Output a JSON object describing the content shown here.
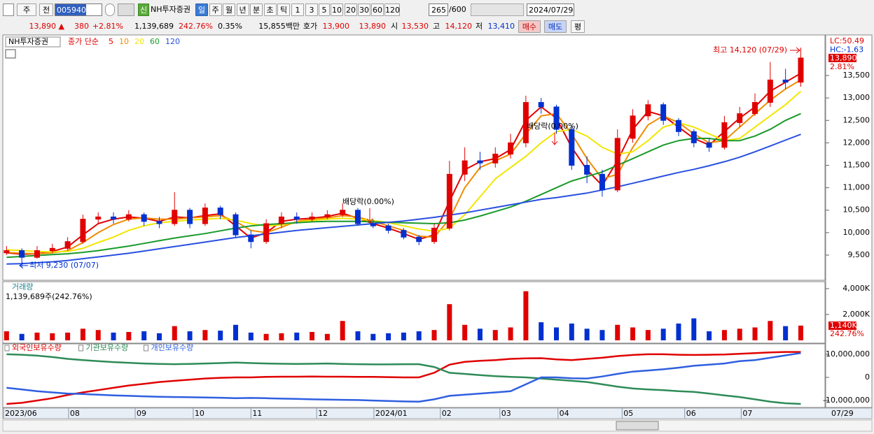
{
  "toolbar": {
    "period_unit": "주",
    "prev_label": "전",
    "code": "005940",
    "badge": "신",
    "name": "NH투자증권",
    "periods": [
      "일",
      "주",
      "월",
      "년",
      "분",
      "초",
      "틱"
    ],
    "intervals": [
      "1",
      "3",
      "5",
      "10",
      "20",
      "30",
      "60",
      "120"
    ],
    "count": "265",
    "max_count": "/600",
    "date": "2024/07/29"
  },
  "quote": {
    "price": "13,890 ▲",
    "change": "380",
    "change_pct": "+2.81%",
    "volume": "1,139,689",
    "volume_ratio": "242.76%",
    "turnover": "0.35%",
    "amount": "15,855백만",
    "ask_label": "호가",
    "ask": "13,900",
    "bid": "13,890",
    "open_label": "시",
    "open": "13,530",
    "high_label": "고",
    "high": "14,120",
    "low_label": "저",
    "low": "13,410",
    "buy": "매수",
    "sell": "매도",
    "avg": "평"
  },
  "chart_data": [
    {
      "type": "candlestick",
      "title": "NH투자증권",
      "legend_prefix": "종가 단순",
      "up_color": "#e00000",
      "down_color": "#0030d0",
      "open": [
        9550,
        9600,
        9450,
        9600,
        9650,
        9800,
        10300,
        10350,
        10300,
        10400,
        10250,
        10200,
        10500,
        10200,
        10550,
        10400,
        9950,
        9800,
        10200,
        10350,
        10300,
        10350,
        10400,
        10500,
        10200,
        10150,
        10050,
        9900,
        9800,
        10100,
        11300,
        11600,
        11550,
        11750,
        12000,
        12900,
        12800,
        12300,
        11500,
        11300,
        10950,
        12100,
        12600,
        12850,
        12500,
        12250,
        12000,
        11900,
        12450,
        12650,
        12900,
        13400,
        13350
      ],
      "high": [
        9700,
        9650,
        9700,
        9750,
        9900,
        10400,
        10450,
        10450,
        10500,
        10450,
        10350,
        10900,
        10550,
        10650,
        10600,
        10450,
        10050,
        10300,
        10450,
        10450,
        10450,
        10500,
        10650,
        10550,
        10300,
        10200,
        10100,
        9950,
        10200,
        11600,
        11900,
        11800,
        11900,
        12200,
        13050,
        13000,
        12850,
        12400,
        11700,
        11400,
        12300,
        12750,
        12950,
        12900,
        12550,
        12300,
        12100,
        12600,
        12800,
        13100,
        13800,
        13650,
        14120
      ],
      "low": [
        9500,
        9230,
        9420,
        9550,
        9600,
        9750,
        10200,
        10200,
        10250,
        10150,
        10100,
        10150,
        10100,
        10150,
        10300,
        9900,
        9650,
        9750,
        10100,
        10200,
        10250,
        10300,
        10350,
        10150,
        10100,
        9980,
        9850,
        9720,
        9750,
        10050,
        11150,
        11400,
        11450,
        11650,
        11900,
        12650,
        12200,
        11400,
        11100,
        10800,
        10900,
        12000,
        12500,
        12400,
        12150,
        11900,
        11800,
        11850,
        12350,
        12600,
        12800,
        13200,
        13250
      ],
      "close": [
        9600,
        9450,
        9600,
        9650,
        9800,
        10300,
        10350,
        10300,
        10400,
        10250,
        10200,
        10500,
        10200,
        10550,
        10400,
        9950,
        9800,
        10200,
        10350,
        10300,
        10350,
        10400,
        10500,
        10200,
        10150,
        10050,
        9900,
        9800,
        10100,
        11300,
        11600,
        11550,
        11750,
        12000,
        12900,
        12800,
        12300,
        11500,
        11300,
        10950,
        12100,
        12600,
        12850,
        12500,
        12250,
        12000,
        11900,
        12450,
        12650,
        12900,
        13400,
        13350,
        13890
      ],
      "series": [
        {
          "name": "5",
          "color": "#e00000",
          "values": [
            9550,
            9520,
            9530,
            9580,
            9680,
            9950,
            10200,
            10300,
            10350,
            10320,
            10250,
            10350,
            10330,
            10380,
            10420,
            10150,
            9880,
            10000,
            10250,
            10300,
            10320,
            10360,
            10430,
            10320,
            10200,
            10100,
            9980,
            9850,
            9950,
            10700,
            11400,
            11580,
            11650,
            11850,
            12500,
            12800,
            12550,
            11900,
            11400,
            11050,
            11600,
            12300,
            12700,
            12600,
            12350,
            12100,
            11950,
            12250,
            12550,
            12800,
            13150,
            13350,
            13550
          ]
        },
        {
          "name": "10",
          "color": "#f08c00",
          "values": [
            9560,
            9540,
            9530,
            9550,
            9600,
            9780,
            10000,
            10180,
            10300,
            10330,
            10300,
            10300,
            10330,
            10350,
            10380,
            10250,
            10050,
            10000,
            10120,
            10250,
            10300,
            10330,
            10380,
            10350,
            10250,
            10150,
            10050,
            9920,
            9900,
            10300,
            11000,
            11450,
            11600,
            11750,
            12200,
            12600,
            12650,
            12200,
            11650,
            11200,
            11300,
            11900,
            12400,
            12600,
            12450,
            12200,
            12000,
            12050,
            12350,
            12650,
            12950,
            13200,
            13400
          ]
        },
        {
          "name": "20",
          "color": "#f2e600",
          "values": [
            9620,
            9600,
            9580,
            9570,
            9580,
            9650,
            9780,
            9900,
            10050,
            10150,
            10220,
            10250,
            10280,
            10300,
            10320,
            10280,
            10200,
            10150,
            10170,
            10230,
            10270,
            10300,
            10320,
            10300,
            10270,
            10220,
            10150,
            10080,
            10030,
            10100,
            10400,
            10800,
            11200,
            11450,
            11700,
            12000,
            12250,
            12300,
            12150,
            11900,
            11750,
            11800,
            12050,
            12350,
            12450,
            12350,
            12200,
            12050,
            12100,
            12350,
            12600,
            12850,
            13150
          ]
        },
        {
          "name": "60",
          "color": "#1a9a2a",
          "values": [
            9450,
            9470,
            9490,
            9510,
            9530,
            9560,
            9600,
            9650,
            9700,
            9760,
            9820,
            9880,
            9930,
            9980,
            10040,
            10100,
            10150,
            10180,
            10200,
            10220,
            10240,
            10250,
            10250,
            10250,
            10240,
            10230,
            10220,
            10210,
            10200,
            10220,
            10280,
            10370,
            10470,
            10570,
            10700,
            10850,
            11000,
            11150,
            11250,
            11350,
            11500,
            11650,
            11800,
            11950,
            12050,
            12100,
            12100,
            12050,
            12050,
            12150,
            12300,
            12500,
            12650
          ]
        },
        {
          "name": "120",
          "color": "#2850e0",
          "values": [
            9300,
            9310,
            9330,
            9350,
            9380,
            9420,
            9460,
            9500,
            9540,
            9590,
            9640,
            9690,
            9740,
            9790,
            9840,
            9890,
            9930,
            9970,
            10010,
            10050,
            10080,
            10110,
            10140,
            10170,
            10200,
            10230,
            10260,
            10300,
            10340,
            10390,
            10440,
            10500,
            10560,
            10620,
            10680,
            10740,
            10780,
            10830,
            10880,
            10950,
            11020,
            11100,
            11180,
            11260,
            11340,
            11410,
            11490,
            11580,
            11680,
            11800,
            11930,
            12060,
            12190
          ]
        }
      ],
      "xlim": [
        -0.2,
        52.3
      ],
      "ylim": [
        8955,
        14372
      ],
      "yticks": [
        {
          "value": 9500,
          "label": "9,500"
        },
        {
          "value": 10000,
          "label": "10,000"
        },
        {
          "value": 10500,
          "label": "10,500"
        },
        {
          "value": 11000,
          "label": "11,000"
        },
        {
          "value": 11500,
          "label": "11,500"
        },
        {
          "value": 12000,
          "label": "12,000"
        },
        {
          "value": 12500,
          "label": "12,500"
        },
        {
          "value": 13000,
          "label": "13,000"
        },
        {
          "value": 13500,
          "label": "13,500"
        }
      ],
      "right_labels": [
        "LC:50.49",
        "HC:-1.63",
        "13,890",
        "2.81%"
      ],
      "annotations": [
        "최고 14,120 (07/29)",
        "최저 9,230 (07/07)",
        "배당락(0.00%)",
        "배당락(0.00%)"
      ]
    },
    {
      "type": "bar",
      "title": "거래량",
      "subtitle": "1,139,689주(242.76%)",
      "values": [
        700,
        500,
        600,
        550,
        600,
        900,
        800,
        600,
        650,
        700,
        550,
        1100,
        700,
        800,
        750,
        1200,
        600,
        500,
        550,
        600,
        650,
        500,
        1500,
        700,
        500,
        550,
        600,
        700,
        800,
        2800,
        1200,
        900,
        800,
        1000,
        3800,
        1400,
        1000,
        1300,
        900,
        800,
        1200,
        1000,
        800,
        900,
        1300,
        1700,
        700,
        800,
        900,
        1000,
        1500,
        1100,
        1140
      ],
      "xlim": [
        -0.2,
        52.3
      ],
      "ylim": [
        -162,
        4486
      ],
      "yticks": [
        {
          "value": 2000,
          "label": "2,000K"
        },
        {
          "value": 4000,
          "label": "4,000K"
        }
      ],
      "right_labels": [
        "1,140K",
        "242.76%"
      ]
    },
    {
      "type": "line",
      "series": [
        {
          "name": "외국인보유수량",
          "color": "#e00000",
          "values": [
            -11500000,
            -11000000,
            -10000000,
            -9000000,
            -7600000,
            -6500000,
            -5500000,
            -4500000,
            -3500000,
            -2800000,
            -2000000,
            -1500000,
            -1000000,
            -500000,
            -200000,
            0,
            0,
            200000,
            300000,
            300000,
            400000,
            300000,
            300000,
            200000,
            200000,
            100000,
            0,
            0,
            2000000,
            5500000,
            6700000,
            7200000,
            7500000,
            8000000,
            8200000,
            8300000,
            7800000,
            7500000,
            8000000,
            8500000,
            9200000,
            9700000,
            10000000,
            10000000,
            9800000,
            9700000,
            9800000,
            9900000,
            10200000,
            10500000,
            10800000,
            11000000,
            11000000
          ]
        },
        {
          "name": "기관보유수량",
          "color": "#2e8b57",
          "values": [
            10000000,
            9800000,
            9400000,
            8800000,
            8000000,
            7500000,
            7000000,
            6600000,
            6300000,
            6000000,
            5800000,
            5700000,
            5800000,
            6000000,
            6200000,
            6400000,
            6200000,
            6000000,
            5900000,
            5800000,
            5900000,
            6000000,
            5800000,
            5700000,
            5600000,
            5600000,
            5700000,
            5700000,
            4500000,
            2000000,
            1500000,
            1000000,
            500000,
            200000,
            0,
            -500000,
            -1000000,
            -1500000,
            -2000000,
            -3000000,
            -4000000,
            -4800000,
            -5200000,
            -5500000,
            -6000000,
            -6300000,
            -7000000,
            -7800000,
            -8500000,
            -9500000,
            -10500000,
            -11200000,
            -11500000
          ]
        },
        {
          "name": "개인보유수량",
          "color": "#2f5fe0",
          "values": [
            -4500000,
            -5200000,
            -6000000,
            -6500000,
            -7000000,
            -7200000,
            -7500000,
            -7800000,
            -8000000,
            -8200000,
            -8400000,
            -8500000,
            -8600000,
            -8700000,
            -8800000,
            -9000000,
            -8900000,
            -9000000,
            -9200000,
            -9300000,
            -9500000,
            -9600000,
            -9700000,
            -9800000,
            -10000000,
            -10200000,
            -10400000,
            -10500000,
            -9500000,
            -8000000,
            -7500000,
            -7000000,
            -6500000,
            -6000000,
            -3000000,
            0,
            0,
            -400000,
            -500000,
            400000,
            1500000,
            2500000,
            3000000,
            3500000,
            4200000,
            5000000,
            5500000,
            6000000,
            7000000,
            7500000,
            8500000,
            9500000,
            10500000
          ]
        }
      ],
      "xlim": [
        -0.2,
        52.3
      ],
      "ylim": [
        -12700000,
        14500000
      ],
      "yticks": [
        {
          "value": -10000000,
          "label": "-10,000,000"
        },
        0,
        {
          "value": 10000000,
          "label": "10,000,000"
        }
      ],
      "xticks": [
        {
          "value": -0.2,
          "label": "2023/06"
        },
        {
          "value": 4.06,
          "label": "08"
        },
        {
          "value": 8.42,
          "label": "09"
        },
        {
          "value": 12.22,
          "label": "10"
        },
        {
          "value": 16.0,
          "label": "11"
        },
        {
          "value": 20.3,
          "label": "12"
        },
        {
          "value": 24.05,
          "label": "2024/01"
        },
        {
          "value": 28.4,
          "label": "02"
        },
        {
          "value": 32.3,
          "label": "03"
        },
        {
          "value": 36.1,
          "label": "04"
        },
        {
          "value": 40.3,
          "label": "05"
        },
        {
          "value": 44.4,
          "label": "06"
        },
        {
          "value": 48.1,
          "label": "07"
        }
      ],
      "last_date_label": "07/29"
    }
  ]
}
